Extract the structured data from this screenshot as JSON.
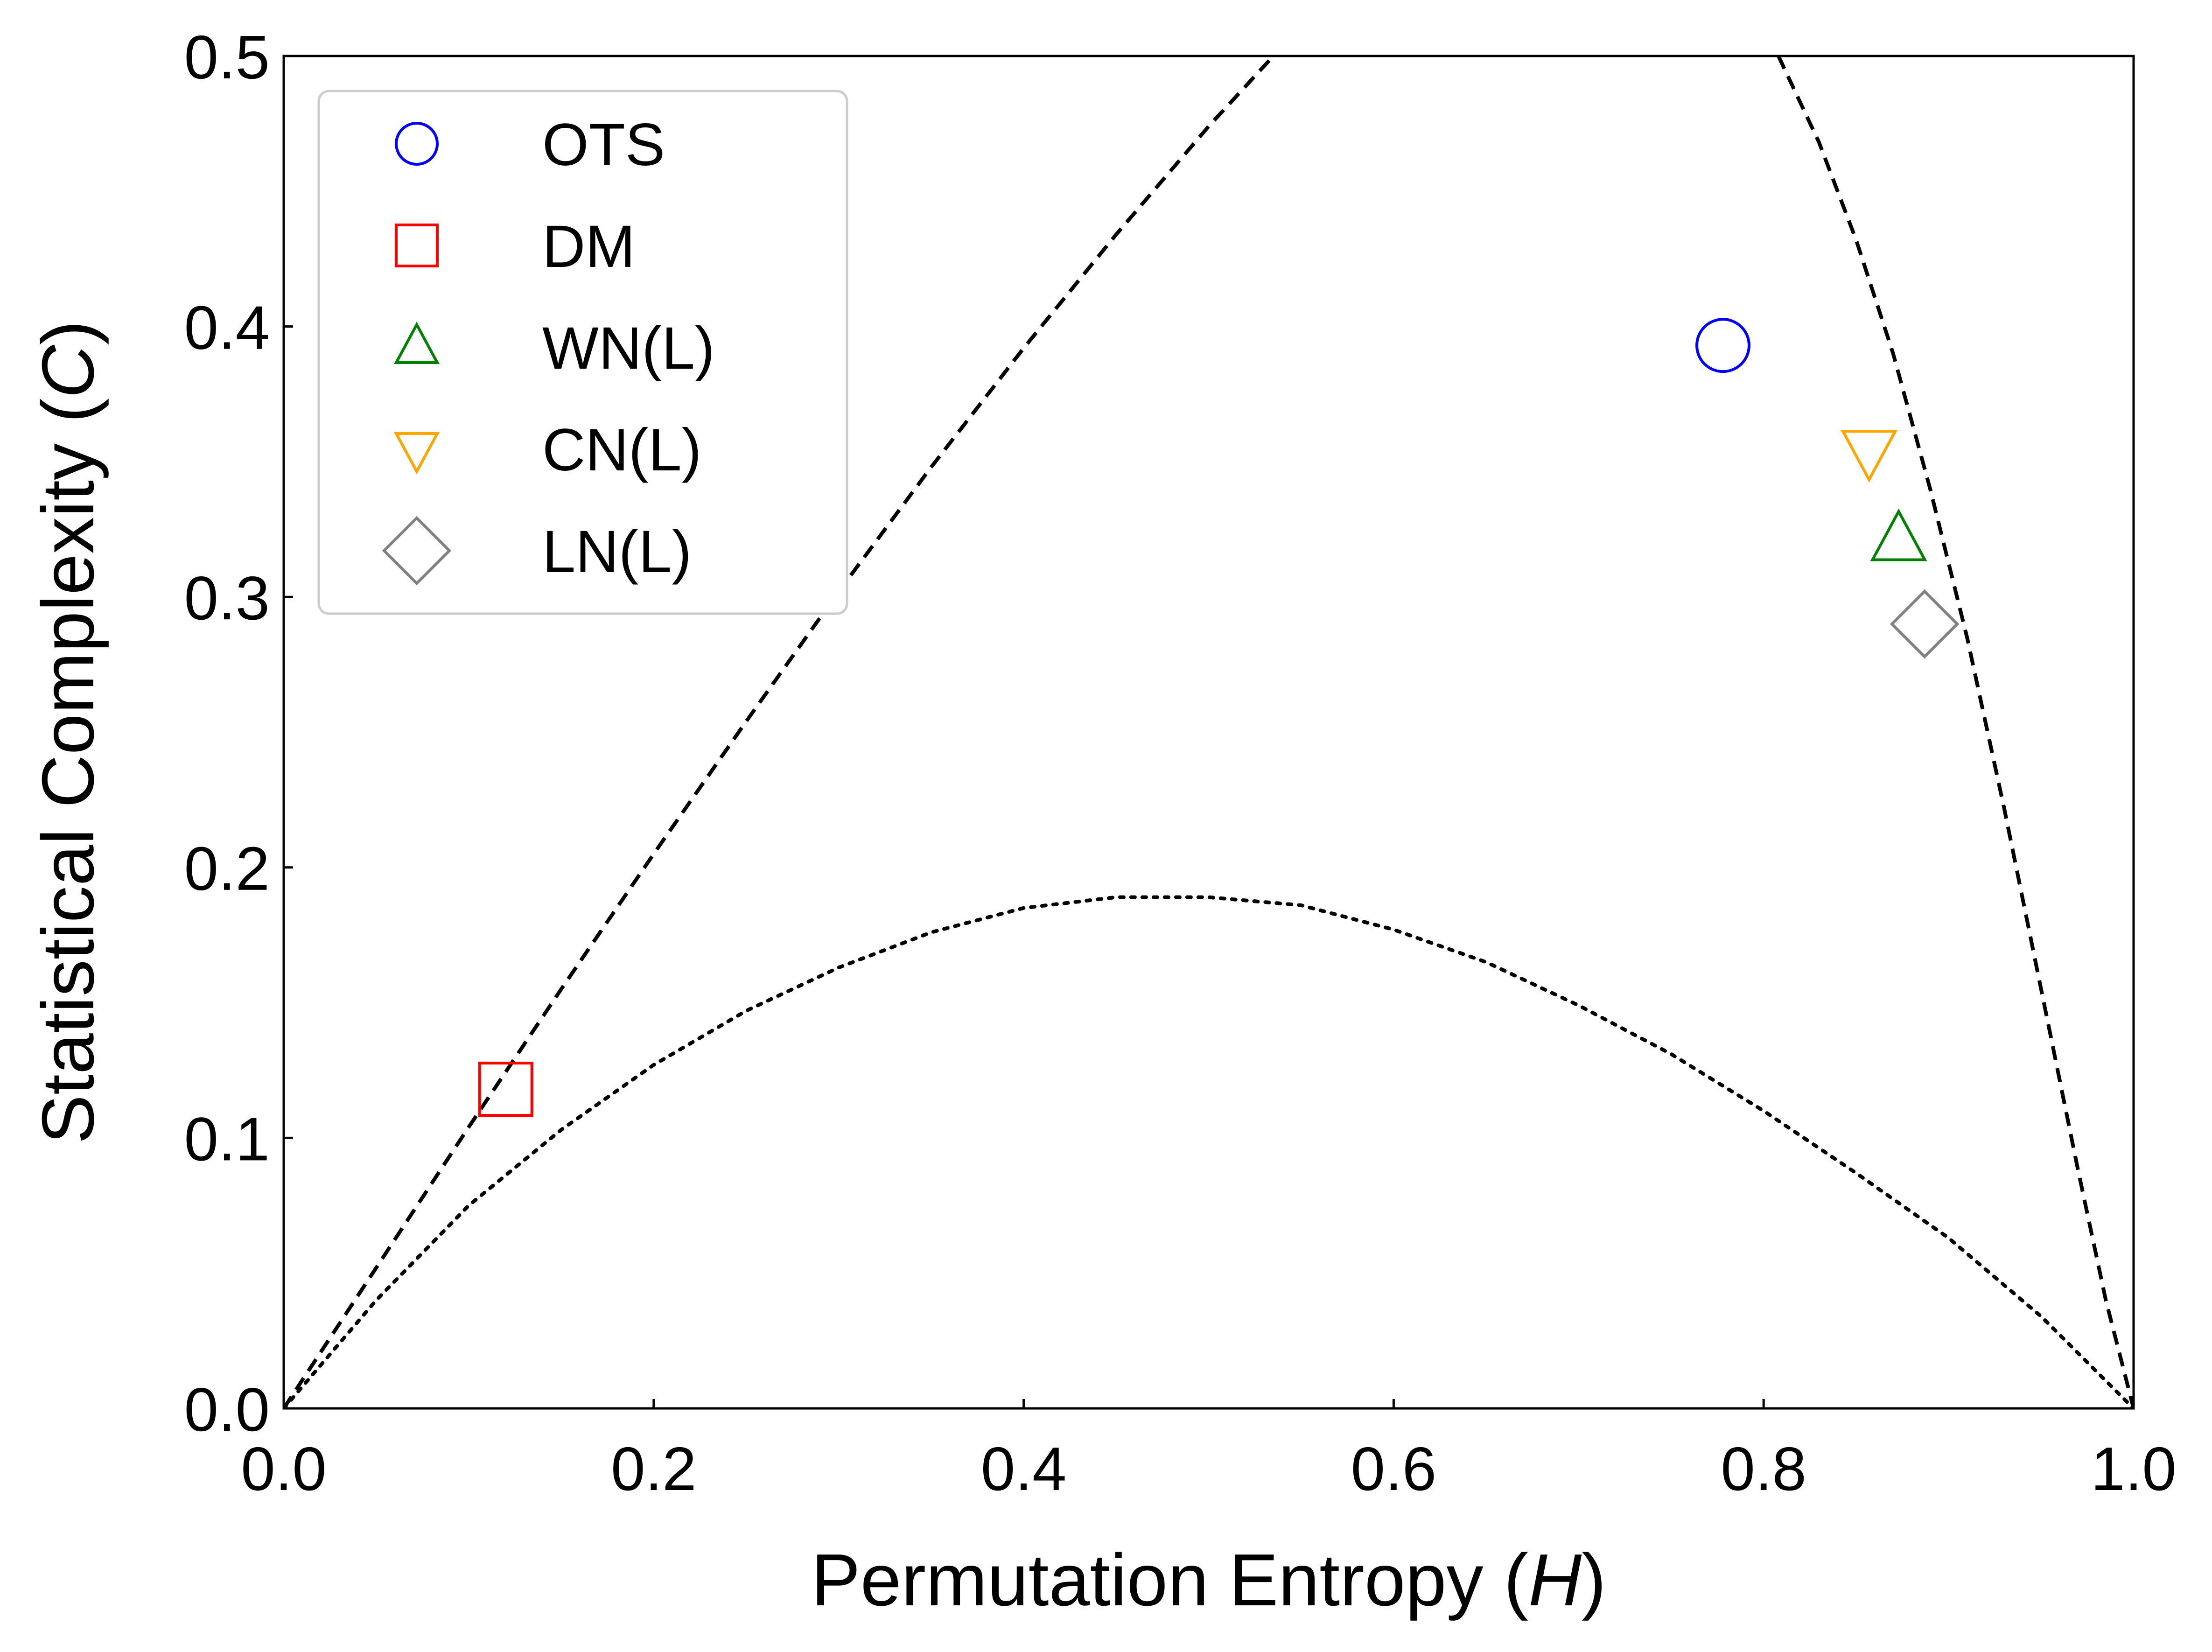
{
  "chart_data": {
    "type": "scatter",
    "xlabel": {
      "text": "Permutation Entropy (",
      "var": "H",
      "close": ")"
    },
    "ylabel": {
      "text": "Statistical Complexity (",
      "var": "C",
      "close": ")"
    },
    "xlim": [
      0.0,
      1.0
    ],
    "ylim": [
      0.0,
      0.5
    ],
    "x_ticks": [
      "0.0",
      "0.2",
      "0.4",
      "0.6",
      "0.8",
      "1.0"
    ],
    "y_ticks": [
      "0.0",
      "0.1",
      "0.2",
      "0.3",
      "0.4",
      "0.5"
    ],
    "grid": false,
    "legend_placement": "top-left",
    "series": [
      {
        "name": "OTS",
        "marker": "circle",
        "color": "#0000ff",
        "x": 0.778,
        "y": 0.393
      },
      {
        "name": "DM",
        "marker": "square",
        "color": "#ff0000",
        "x": 0.12,
        "y": 0.118
      },
      {
        "name": "WN(L)",
        "marker": "triangle-up",
        "color": "#008000",
        "x": 0.873,
        "y": 0.321
      },
      {
        "name": "CN(L)",
        "marker": "triangle-down",
        "color": "#ffa500",
        "x": 0.857,
        "y": 0.354
      },
      {
        "name": "LN(L)",
        "marker": "diamond",
        "color": "#808080",
        "x": 0.887,
        "y": 0.29
      }
    ],
    "boundary_curves": [
      {
        "style": "dashed",
        "points": [
          [
            0,
            0
          ],
          [
            0.05,
            0.052
          ],
          [
            0.1,
            0.104
          ],
          [
            0.15,
            0.155
          ],
          [
            0.2,
            0.205
          ],
          [
            0.25,
            0.254
          ],
          [
            0.3,
            0.302
          ],
          [
            0.35,
            0.348
          ],
          [
            0.4,
            0.392
          ],
          [
            0.45,
            0.434
          ],
          [
            0.5,
            0.474
          ],
          [
            0.535,
            0.5
          ]
        ]
      },
      {
        "style": "dashed",
        "points": [
          [
            0.808,
            0.5
          ],
          [
            0.83,
            0.468
          ],
          [
            0.85,
            0.432
          ],
          [
            0.87,
            0.39
          ],
          [
            0.89,
            0.34
          ],
          [
            0.91,
            0.285
          ],
          [
            0.93,
            0.222
          ],
          [
            0.95,
            0.155
          ],
          [
            0.97,
            0.088
          ],
          [
            0.985,
            0.04
          ],
          [
            1.0,
            0.0
          ]
        ]
      },
      {
        "style": "dotted",
        "points": [
          [
            0,
            0
          ],
          [
            0.05,
            0.04
          ],
          [
            0.1,
            0.075
          ],
          [
            0.15,
            0.103
          ],
          [
            0.2,
            0.127
          ],
          [
            0.25,
            0.147
          ],
          [
            0.3,
            0.163
          ],
          [
            0.35,
            0.176
          ],
          [
            0.4,
            0.185
          ],
          [
            0.45,
            0.189
          ],
          [
            0.5,
            0.189
          ],
          [
            0.55,
            0.186
          ],
          [
            0.6,
            0.177
          ],
          [
            0.65,
            0.165
          ],
          [
            0.7,
            0.149
          ],
          [
            0.75,
            0.131
          ],
          [
            0.8,
            0.11
          ],
          [
            0.85,
            0.087
          ],
          [
            0.9,
            0.063
          ],
          [
            0.95,
            0.034
          ],
          [
            1.0,
            0.0
          ]
        ]
      }
    ]
  }
}
